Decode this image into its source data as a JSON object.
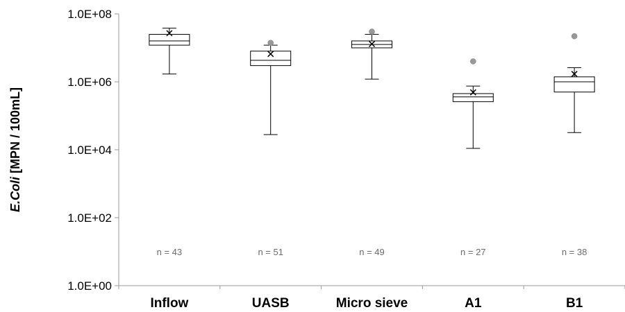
{
  "chart_data": {
    "type": "box",
    "ylabel_italic": "E.Coli",
    "ylabel_rest": " [MPN / 100mL]",
    "yscale": "log",
    "ylim": [
      1,
      100000000
    ],
    "yticks": [
      {
        "value": 1,
        "label": "1.0E+00"
      },
      {
        "value": 100,
        "label": "1.0E+02"
      },
      {
        "value": 10000,
        "label": "1.0E+04"
      },
      {
        "value": 1000000,
        "label": "1.0E+06"
      },
      {
        "value": 100000000,
        "label": "1.0E+08"
      }
    ],
    "categories": [
      "Inflow",
      "UASB",
      "Micro sieve",
      "A1",
      "B1"
    ],
    "boxes": [
      {
        "category": "Inflow",
        "n_label": "n = 43",
        "whisker_low": 1700000,
        "q1": 12000000,
        "median": 16000000,
        "q3": 25000000,
        "whisker_high": 38000000,
        "mean": 27000000,
        "outliers": []
      },
      {
        "category": "UASB",
        "n_label": "n = 51",
        "whisker_low": 28000,
        "q1": 3000000,
        "median": 4300000,
        "q3": 8000000,
        "whisker_high": 12000000,
        "mean": 6600000,
        "outliers": [
          14000000
        ]
      },
      {
        "category": "Micro sieve",
        "n_label": "n = 49",
        "whisker_low": 1200000,
        "q1": 10000000,
        "median": 12600000,
        "q3": 16000000,
        "whisker_high": 25000000,
        "mean": 13000000,
        "outliers": [
          30000000
        ]
      },
      {
        "category": "A1",
        "n_label": "n = 27",
        "whisker_low": 11000,
        "q1": 260000,
        "median": 360000,
        "q3": 450000,
        "whisker_high": 750000,
        "mean": 490000,
        "outliers": [
          4000000
        ]
      },
      {
        "category": "B1",
        "n_label": "n = 38",
        "whisker_low": 32000,
        "q1": 500000,
        "median": 1000000,
        "q3": 1400000,
        "whisker_high": 2600000,
        "mean": 1700000,
        "outliers": [
          22000000
        ]
      }
    ],
    "grid": false,
    "legend": "none"
  }
}
